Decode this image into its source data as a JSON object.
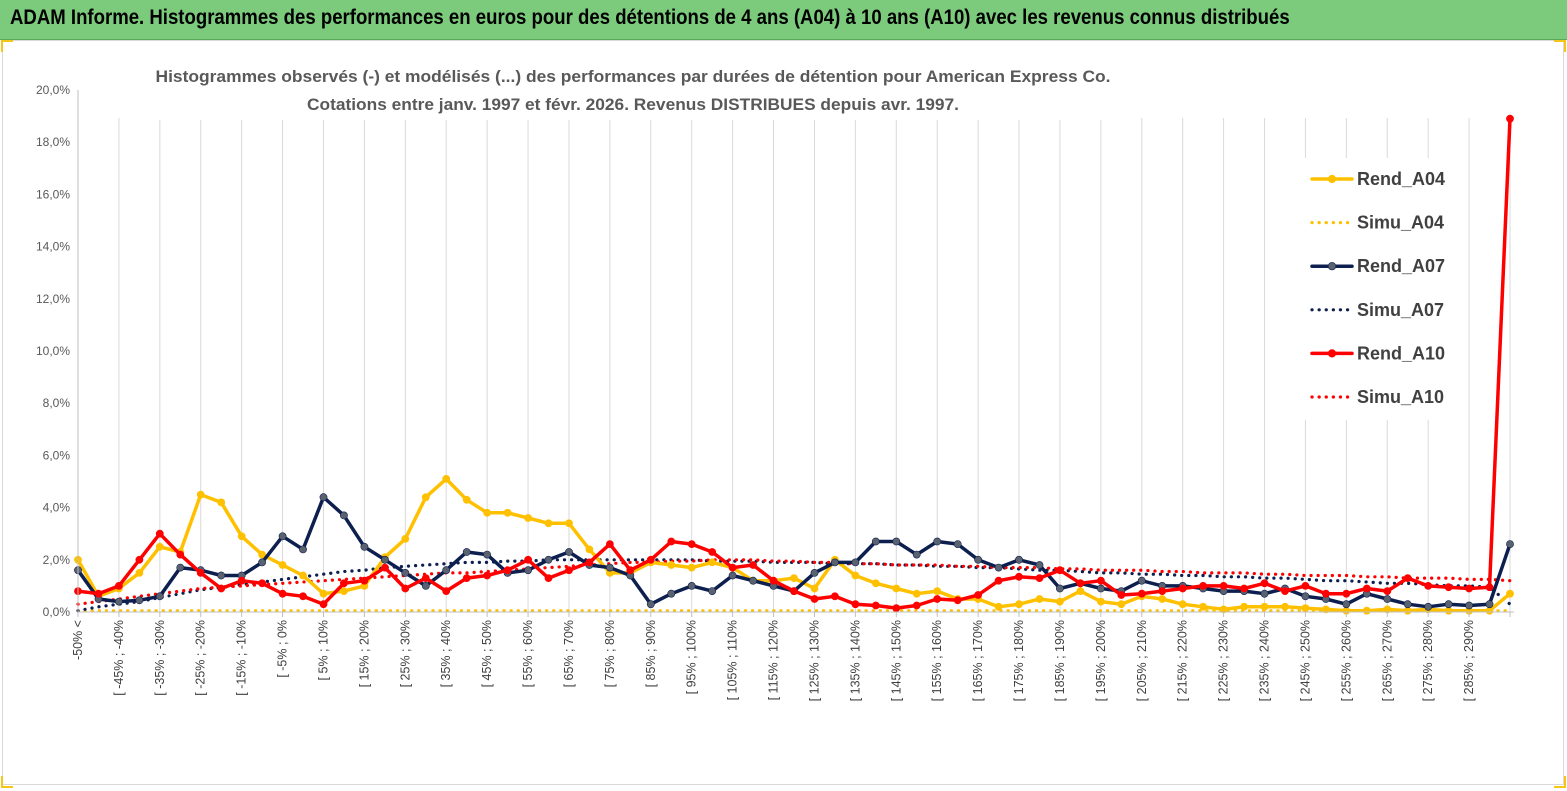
{
  "banner": {
    "title": "ADAM Informe. Histogrammes des performances en euros pour des détentions de 4 ans (A04) à 10 ans (A10) avec les revenus connus distribués"
  },
  "chart_data": {
    "type": "line",
    "title_line1": "Histogrammes observés (-) et modélisés (...) des performances par durées de détention pour American Express Co.",
    "title_line2": "Cotations entre janv. 1997 et févr. 2026. Revenus DISTRIBUES depuis avr. 1997.",
    "ylim": [
      0,
      20
    ],
    "y_ticks": [
      "0,0%",
      "2,0%",
      "4,0%",
      "6,0%",
      "8,0%",
      "10,0%",
      "12,0%",
      "14,0%",
      "16,0%",
      "18,0%",
      "20,0%"
    ],
    "x_labels": [
      "-50% <",
      "[ -45% ; -40%",
      "[ -35% ; -30%",
      "[ -25% ; -20%",
      "[ -15% ; -10%",
      "[ -5% ; 0%",
      "[ 5% ; 10%",
      "[ 15% ; 20%",
      "[ 25% ; 30%",
      "[ 35% ; 40%",
      "[ 45% ; 50%",
      "[ 55% ; 60%",
      "[ 65% ; 70%",
      "[ 75% ; 80%",
      "[ 85% ; 90%",
      "[ 95% ; 100%",
      "[ 105% ; 110%",
      "[ 115% ; 120%",
      "[ 125% ; 130%",
      "[ 135% ; 140%",
      "[ 145% ; 150%",
      "[ 155% ; 160%",
      "[ 165% ; 170%",
      "[ 175% ; 180%",
      "[ 185% ; 190%",
      "[ 195% ; 200%",
      "[ 205% ; 210%",
      "[ 215% ; 220%",
      "[ 225% ; 230%",
      "[ 235% ; 240%",
      "[ 245% ; 250%",
      "[ 255% ; 260%",
      "[ 265% ; 270%",
      "[ 275% ; 280%",
      "[ 285% ; 290%"
    ],
    "series": [
      {
        "name": "Rend_A04",
        "color": "#ffc000",
        "style": "solid",
        "markers": true,
        "values": [
          2.0,
          0.6,
          0.9,
          1.5,
          2.5,
          2.3,
          4.5,
          4.2,
          2.9,
          2.2,
          1.8,
          1.4,
          0.7,
          0.8,
          1.0,
          2.1,
          2.8,
          4.4,
          5.1,
          4.3,
          3.8,
          3.8,
          3.6,
          3.4,
          3.4,
          2.4,
          1.5,
          1.5,
          1.9,
          1.8,
          1.7,
          1.9,
          1.7,
          1.2,
          1.2,
          1.3,
          0.9,
          2.0,
          1.4,
          1.1,
          0.9,
          0.7,
          0.8,
          0.5,
          0.5,
          0.2,
          0.3,
          0.5,
          0.4,
          0.8,
          0.4,
          0.3,
          0.6,
          0.5,
          0.3,
          0.2,
          0.1,
          0.2,
          0.2,
          0.2,
          0.15,
          0.1,
          0.05,
          0.05,
          0.1,
          0.05,
          0.1,
          0.05,
          0.05,
          0.05,
          0.7
        ]
      },
      {
        "name": "Simu_A04",
        "color": "#ffc000",
        "style": "dotted",
        "markers": false,
        "values": [
          0.05,
          0.05,
          0.05,
          0.05,
          0.05,
          0.05,
          0.05,
          0.05,
          0.05,
          0.05,
          0.05,
          0.05,
          0.05,
          0.05,
          0.05,
          0.05,
          0.05,
          0.05,
          0.05,
          0.05,
          0.05,
          0.05,
          0.05,
          0.05,
          0.05,
          0.05,
          0.05,
          0.05,
          0.05,
          0.05,
          0.05,
          0.05,
          0.05,
          0.05,
          0.05,
          0.05,
          0.05,
          0.05,
          0.05,
          0.05,
          0.05,
          0.05,
          0.05,
          0.05,
          0.05,
          0.05,
          0.05,
          0.05,
          0.05,
          0.05,
          0.05,
          0.05,
          0.05,
          0.05,
          0.05,
          0.05,
          0.05,
          0.05,
          0.05,
          0.05,
          0.05,
          0.05,
          0.05,
          0.05,
          0.05,
          0.05,
          0.05,
          0.05,
          0.05,
          0.05,
          0.05
        ]
      },
      {
        "name": "Rend_A07",
        "color": "#0d1f4f",
        "style": "solid",
        "markers": true,
        "values": [
          1.6,
          0.5,
          0.4,
          0.45,
          0.6,
          1.7,
          1.6,
          1.4,
          1.4,
          1.9,
          2.9,
          2.4,
          4.4,
          3.7,
          2.5,
          2.0,
          1.5,
          1.0,
          1.6,
          2.3,
          2.2,
          1.5,
          1.6,
          2.0,
          2.3,
          1.8,
          1.7,
          1.4,
          0.3,
          0.7,
          1.0,
          0.8,
          1.4,
          1.2,
          1.0,
          0.8,
          1.5,
          1.9,
          1.9,
          2.7,
          2.7,
          2.2,
          2.7,
          2.6,
          2.0,
          1.7,
          2.0,
          1.8,
          0.9,
          1.1,
          0.9,
          0.8,
          1.2,
          1.0,
          1.0,
          0.9,
          0.8,
          0.8,
          0.7,
          0.9,
          0.6,
          0.5,
          0.3,
          0.7,
          0.5,
          0.3,
          0.2,
          0.3,
          0.25,
          0.3,
          2.6
        ]
      },
      {
        "name": "Simu_A07",
        "color": "#0d1f4f",
        "style": "dotted",
        "markers": false,
        "values": [
          0.05,
          0.2,
          0.3,
          0.4,
          0.55,
          0.7,
          0.85,
          0.95,
          1.05,
          1.15,
          1.25,
          1.35,
          1.45,
          1.55,
          1.6,
          1.7,
          1.75,
          1.8,
          1.85,
          1.9,
          1.9,
          1.95,
          1.95,
          2.0,
          2.0,
          2.0,
          2.0,
          2.0,
          2.0,
          2.0,
          2.0,
          1.95,
          1.95,
          1.95,
          1.9,
          1.9,
          1.9,
          1.85,
          1.85,
          1.85,
          1.8,
          1.8,
          1.75,
          1.75,
          1.7,
          1.7,
          1.65,
          1.6,
          1.6,
          1.55,
          1.5,
          1.5,
          1.45,
          1.45,
          1.4,
          1.4,
          1.35,
          1.35,
          1.3,
          1.3,
          1.25,
          1.2,
          1.2,
          1.15,
          1.1,
          1.1,
          1.05,
          1.0,
          1.0,
          0.95,
          0.3
        ]
      },
      {
        "name": "Rend_A10",
        "color": "#ff0000",
        "style": "solid",
        "markers": true,
        "values": [
          0.8,
          0.7,
          1.0,
          2.0,
          3.0,
          2.2,
          1.5,
          0.9,
          1.2,
          1.1,
          0.7,
          0.6,
          0.3,
          1.1,
          1.2,
          1.7,
          0.9,
          1.3,
          0.8,
          1.3,
          1.4,
          1.6,
          2.0,
          1.3,
          1.6,
          1.9,
          2.6,
          1.6,
          2.0,
          2.7,
          2.6,
          2.3,
          1.7,
          1.8,
          1.2,
          0.8,
          0.5,
          0.6,
          0.3,
          0.25,
          0.15,
          0.25,
          0.5,
          0.45,
          0.65,
          1.2,
          1.35,
          1.3,
          1.6,
          1.1,
          1.2,
          0.65,
          0.7,
          0.8,
          0.9,
          1.0,
          1.0,
          0.9,
          1.1,
          0.8,
          1.0,
          0.7,
          0.7,
          0.9,
          0.8,
          1.3,
          1.0,
          0.95,
          0.9,
          0.95,
          18.9
        ]
      },
      {
        "name": "Simu_A10",
        "color": "#ff0000",
        "style": "dotted",
        "markers": false,
        "values": [
          0.3,
          0.4,
          0.5,
          0.6,
          0.7,
          0.8,
          0.9,
          0.95,
          1.0,
          1.05,
          1.1,
          1.15,
          1.2,
          1.25,
          1.3,
          1.35,
          1.4,
          1.45,
          1.5,
          1.5,
          1.55,
          1.6,
          1.65,
          1.7,
          1.75,
          1.8,
          1.85,
          1.9,
          1.9,
          1.95,
          1.95,
          2.0,
          2.0,
          2.0,
          1.95,
          1.95,
          1.9,
          1.9,
          1.85,
          1.85,
          1.8,
          1.8,
          1.8,
          1.75,
          1.75,
          1.7,
          1.7,
          1.7,
          1.65,
          1.65,
          1.6,
          1.6,
          1.6,
          1.55,
          1.55,
          1.5,
          1.5,
          1.5,
          1.45,
          1.45,
          1.4,
          1.4,
          1.4,
          1.35,
          1.35,
          1.3,
          1.3,
          1.3,
          1.25,
          1.25,
          1.2
        ]
      }
    ],
    "legend_position": "right",
    "grid": "vertical"
  }
}
